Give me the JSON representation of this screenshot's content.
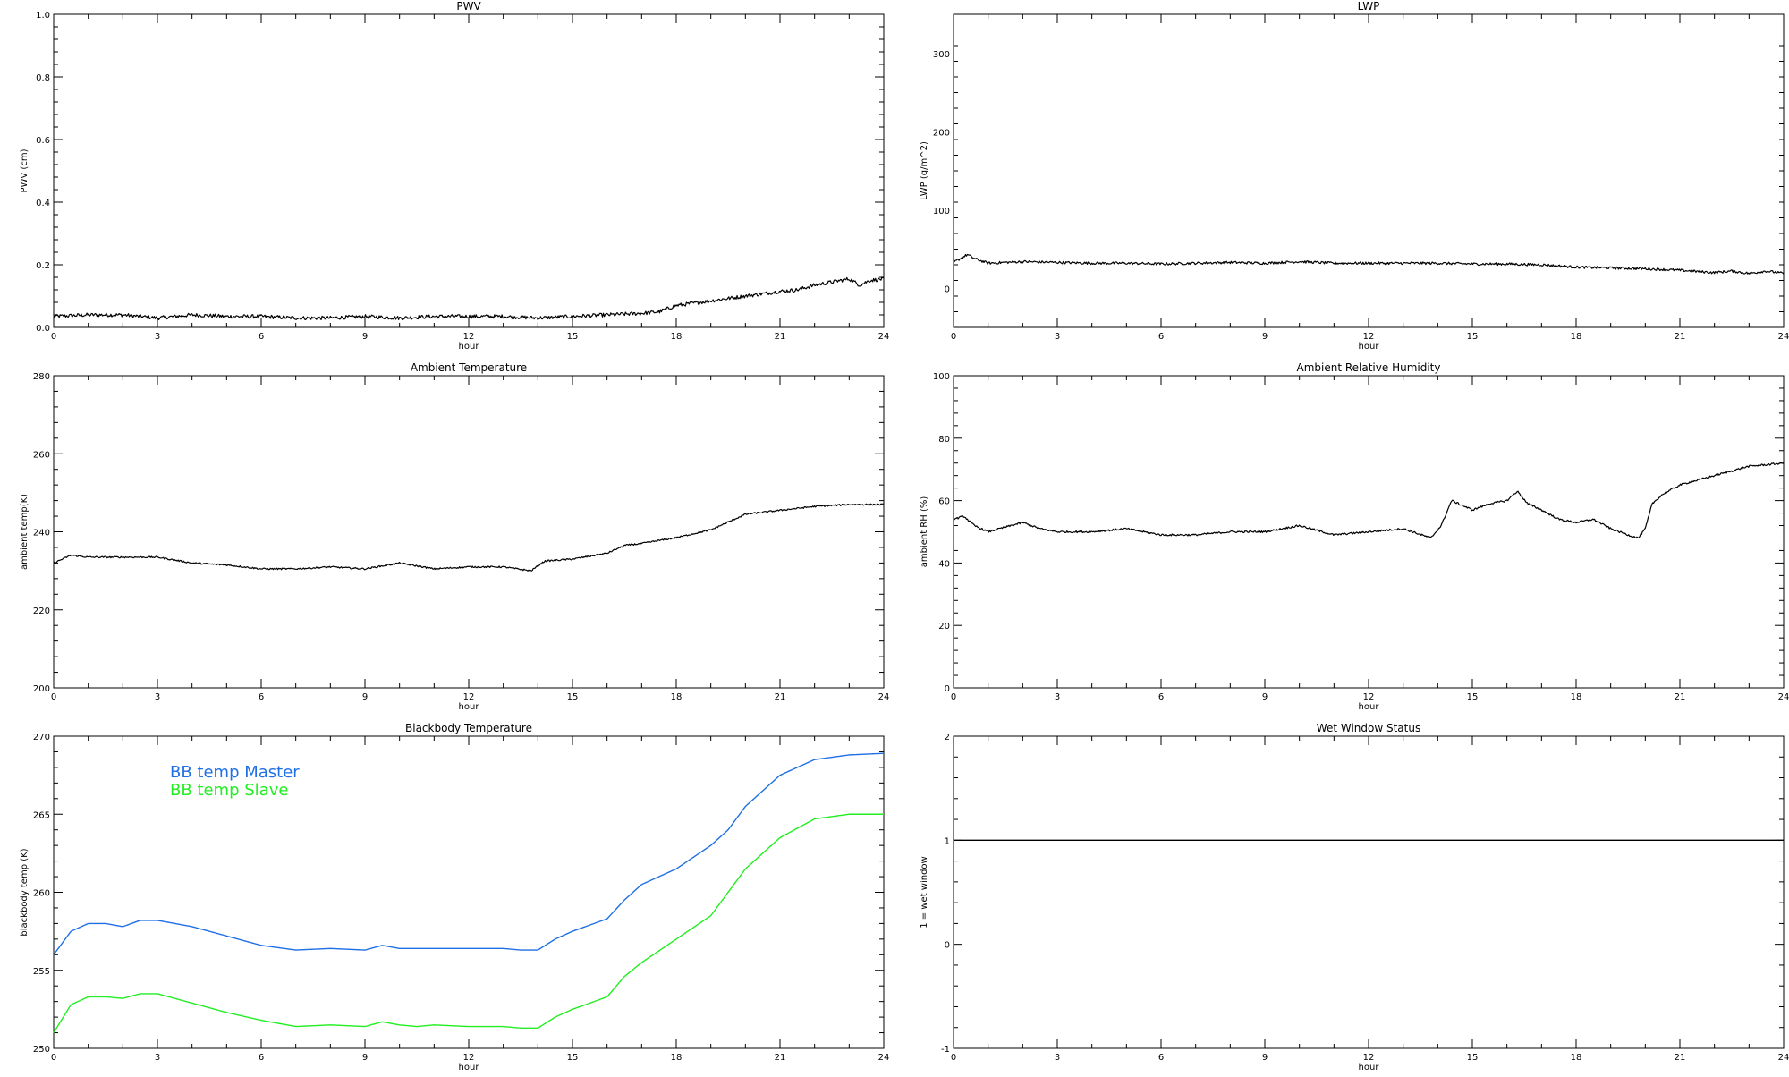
{
  "chart_data": [
    {
      "type": "line",
      "title": "PWV",
      "xlabel": "hour",
      "ylabel": "PWV (cm)",
      "xlim": [
        0,
        24
      ],
      "ylim": [
        0,
        1
      ],
      "xticks": [
        0,
        3,
        6,
        9,
        12,
        15,
        18,
        21,
        24
      ],
      "yticks": [
        0,
        0.2,
        0.4,
        0.6,
        0.8,
        1.0
      ],
      "ytick_labels": [
        "0.0",
        "0.2",
        "0.4",
        "0.6",
        "0.8",
        "1.0"
      ],
      "series": [
        {
          "color": "#000000",
          "noise": 0.006,
          "x": [
            0,
            1,
            2,
            3,
            4,
            5,
            6,
            7,
            8,
            9,
            10,
            11,
            12,
            13,
            14,
            15,
            16,
            17,
            17.5,
            18,
            19,
            20,
            21,
            21.5,
            22,
            22.5,
            23,
            23.3,
            23.6,
            24
          ],
          "y": [
            0.035,
            0.04,
            0.04,
            0.03,
            0.04,
            0.035,
            0.035,
            0.03,
            0.03,
            0.035,
            0.03,
            0.035,
            0.035,
            0.035,
            0.03,
            0.035,
            0.04,
            0.045,
            0.05,
            0.07,
            0.085,
            0.1,
            0.115,
            0.12,
            0.135,
            0.145,
            0.155,
            0.135,
            0.15,
            0.155
          ]
        }
      ]
    },
    {
      "type": "line",
      "title": "LWP",
      "xlabel": "hour",
      "ylabel": "LWP (g/m^2)",
      "xlim": [
        0,
        24
      ],
      "ylim": [
        -50,
        350
      ],
      "xticks": [
        0,
        3,
        6,
        9,
        12,
        15,
        18,
        21,
        24
      ],
      "yticks": [
        0,
        100,
        200,
        300
      ],
      "ytick_labels": [
        "0",
        "100",
        "200",
        "300"
      ],
      "series": [
        {
          "color": "#000000",
          "noise": 1.6,
          "x": [
            0,
            0.2,
            0.4,
            0.6,
            1,
            2,
            3,
            4,
            5,
            6,
            7,
            8,
            9,
            10,
            11,
            12,
            13,
            14,
            15,
            16,
            17,
            18,
            19,
            20,
            21,
            22,
            22.5,
            23,
            23.5,
            24
          ],
          "y": [
            33,
            38,
            43,
            38,
            32,
            34,
            33,
            32,
            32,
            31,
            32,
            33,
            32,
            34,
            32,
            32,
            32,
            32,
            31,
            31,
            30,
            27,
            26,
            25,
            23,
            20,
            22,
            19,
            22,
            19
          ]
        }
      ]
    },
    {
      "type": "line",
      "title": "Ambient Temperature",
      "xlabel": "hour",
      "ylabel": "ambient temp(K)",
      "xlim": [
        0,
        24
      ],
      "ylim": [
        200,
        280
      ],
      "xticks": [
        0,
        3,
        6,
        9,
        12,
        15,
        18,
        21,
        24
      ],
      "yticks": [
        200,
        220,
        240,
        260,
        280
      ],
      "ytick_labels": [
        "200",
        "220",
        "240",
        "260",
        "280"
      ],
      "series": [
        {
          "color": "#000000",
          "noise": 0.2,
          "x": [
            0,
            0.5,
            1,
            2,
            3,
            4,
            5,
            6,
            7,
            8,
            9,
            10,
            11,
            12,
            13,
            13.8,
            14.2,
            15,
            16,
            16.5,
            17,
            18,
            19,
            19.5,
            20,
            21,
            22,
            23,
            24
          ],
          "y": [
            232,
            234,
            233.5,
            233.5,
            233.5,
            232,
            231.5,
            230.5,
            230.5,
            231,
            230.5,
            232,
            230.5,
            231,
            231,
            230,
            232.5,
            233,
            234.5,
            236.5,
            237,
            238.5,
            240.5,
            242.5,
            244.5,
            245.5,
            246.5,
            247,
            247
          ]
        }
      ]
    },
    {
      "type": "line",
      "title": "Ambient Relative Humidity",
      "xlabel": "hour",
      "ylabel": "ambient RH (%)",
      "xlim": [
        0,
        24
      ],
      "ylim": [
        0,
        100
      ],
      "xticks": [
        0,
        3,
        6,
        9,
        12,
        15,
        18,
        21,
        24
      ],
      "yticks": [
        0,
        20,
        40,
        60,
        80,
        100
      ],
      "ytick_labels": [
        "0",
        "20",
        "40",
        "60",
        "80",
        "100"
      ],
      "series": [
        {
          "color": "#000000",
          "noise": 0.3,
          "x": [
            0,
            0.3,
            0.6,
            1,
            2,
            2.5,
            3,
            4,
            5,
            6,
            7,
            8,
            9,
            10,
            11,
            12,
            13,
            13.8,
            14.1,
            14.4,
            15,
            15.5,
            16,
            16.3,
            16.6,
            17,
            17.5,
            18,
            18.5,
            19,
            19.5,
            19.8,
            20,
            20.2,
            20.5,
            21,
            22,
            23,
            24
          ],
          "y": [
            54,
            55,
            52,
            50,
            53,
            51,
            50,
            50,
            51,
            49,
            49,
            50,
            50,
            52,
            49,
            50,
            51,
            48,
            52,
            60,
            57,
            59,
            60,
            63,
            59,
            57,
            54,
            53,
            54,
            51,
            49,
            48,
            51,
            59,
            62,
            65,
            68,
            71,
            72
          ]
        }
      ]
    },
    {
      "type": "line",
      "title": "Blackbody Temperature",
      "xlabel": "hour",
      "ylabel": "blackbody temp (K)",
      "xlim": [
        0,
        24
      ],
      "ylim": [
        250,
        270
      ],
      "xticks": [
        0,
        3,
        6,
        9,
        12,
        15,
        18,
        21,
        24
      ],
      "yticks": [
        250,
        255,
        260,
        265,
        270
      ],
      "ytick_labels": [
        "250",
        "255",
        "260",
        "265",
        "270"
      ],
      "legend_position": "top-left",
      "series": [
        {
          "name": "BB temp Master",
          "color": "#1f6fe6",
          "noise": 0,
          "x": [
            0,
            0.5,
            1,
            1.5,
            2,
            2.5,
            3,
            3.5,
            4,
            5,
            6,
            7,
            8,
            9,
            9.5,
            10,
            10.5,
            11,
            12,
            13,
            13.5,
            14,
            14.5,
            15,
            16,
            16.5,
            17,
            18,
            19,
            19.5,
            20,
            21,
            22,
            23,
            24
          ],
          "y": [
            256,
            257.5,
            258,
            258,
            257.8,
            258.2,
            258.2,
            258,
            257.8,
            257.2,
            256.6,
            256.3,
            256.4,
            256.3,
            256.6,
            256.4,
            256.4,
            256.4,
            256.4,
            256.4,
            256.3,
            256.3,
            257,
            257.5,
            258.3,
            259.5,
            260.5,
            261.5,
            263,
            264,
            265.5,
            267.5,
            268.5,
            268.8,
            268.9
          ]
        },
        {
          "name": "BB temp Slave",
          "color": "#22ee22",
          "noise": 0,
          "x": [
            0,
            0.5,
            1,
            1.5,
            2,
            2.5,
            3,
            3.5,
            4,
            5,
            6,
            7,
            8,
            9,
            9.5,
            10,
            10.5,
            11,
            12,
            13,
            13.5,
            14,
            14.5,
            15,
            16,
            16.5,
            17,
            18,
            19,
            19.5,
            20,
            21,
            22,
            23,
            24
          ],
          "y": [
            251,
            252.8,
            253.3,
            253.3,
            253.2,
            253.5,
            253.5,
            253.2,
            252.9,
            252.3,
            251.8,
            251.4,
            251.5,
            251.4,
            251.7,
            251.5,
            251.4,
            251.5,
            251.4,
            251.4,
            251.3,
            251.3,
            252,
            252.5,
            253.3,
            254.6,
            255.5,
            257,
            258.5,
            260,
            261.5,
            263.5,
            264.7,
            265,
            265
          ]
        }
      ]
    },
    {
      "type": "line",
      "title": "Wet Window Status",
      "xlabel": "hour",
      "ylabel": "1 = wet window",
      "xlim": [
        0,
        24
      ],
      "ylim": [
        -1,
        2
      ],
      "xticks": [
        0,
        3,
        6,
        9,
        12,
        15,
        18,
        21,
        24
      ],
      "yticks": [
        -1,
        0,
        1,
        2
      ],
      "ytick_labels": [
        "-1",
        "0",
        "1",
        "2"
      ],
      "series": [
        {
          "color": "#000000",
          "noise": 0,
          "x": [
            0,
            24
          ],
          "y": [
            1,
            1
          ]
        }
      ]
    }
  ]
}
